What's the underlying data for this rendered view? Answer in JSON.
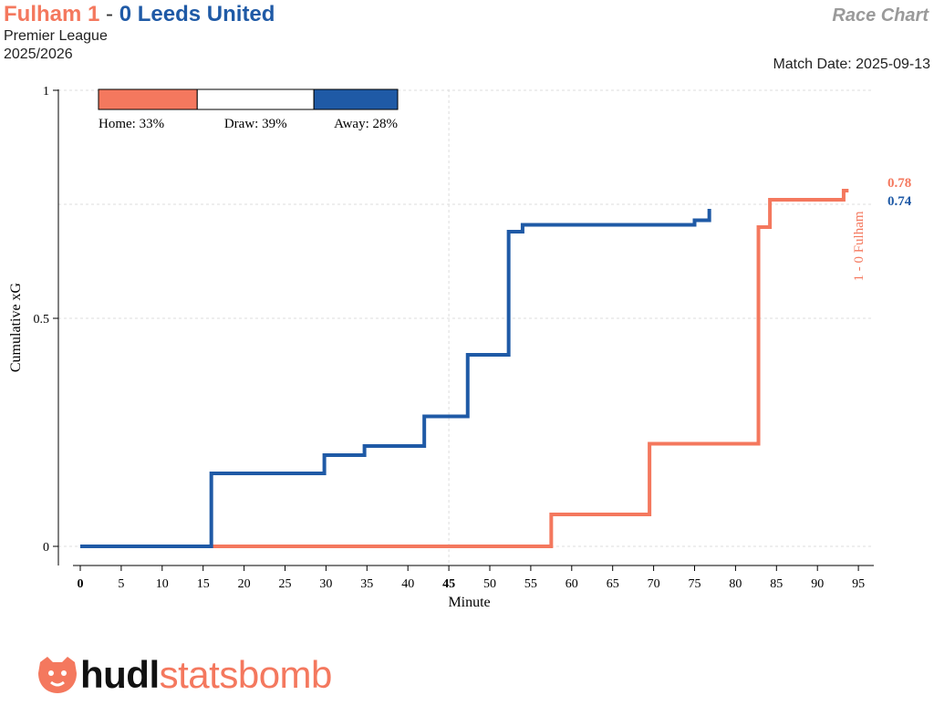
{
  "header": {
    "home_team": "Fulham",
    "home_score": "1",
    "separator": "-",
    "away_score": "0",
    "away_team": "Leeds United",
    "competition": "Premier League",
    "season": "2025/2026",
    "chart_name": "Race Chart",
    "match_date": "Match Date: 2025-09-13"
  },
  "colors": {
    "home": "#F4785E",
    "away": "#1F5AA6",
    "draw": "#ffffff",
    "grid": "#dddddd"
  },
  "probability_bar": {
    "home_label": "Home: 33%",
    "draw_label": "Draw: 39%",
    "away_label": "Away: 28%",
    "home": 0.33,
    "draw": 0.39,
    "away": 0.28
  },
  "logo": {
    "icon": "statsbomb-bulldog-icon",
    "brand_dark": "hudl",
    "brand_accent": "statsbomb"
  },
  "chart_data": {
    "type": "line",
    "xlabel": "Minute",
    "ylabel": "Cumulative xG",
    "xlim": [
      0,
      97
    ],
    "ylim": [
      0,
      1
    ],
    "x_ticks": [
      0,
      5,
      10,
      15,
      20,
      25,
      30,
      35,
      40,
      45,
      50,
      55,
      60,
      65,
      70,
      75,
      80,
      85,
      90,
      95
    ],
    "y_ticks": [
      0,
      0.5,
      1
    ],
    "y_tick_labels": [
      "0",
      "0.5",
      "1"
    ],
    "grid": true,
    "series": [
      {
        "name": "Fulham",
        "color": "#F4785E",
        "steps": [
          [
            0,
            0
          ],
          [
            57.5,
            0.07
          ],
          [
            69.5,
            0.225
          ],
          [
            82.8,
            0.7
          ],
          [
            84.2,
            0.76
          ],
          [
            93.2,
            0.78
          ],
          [
            93.8,
            0.78
          ]
        ],
        "end_label": "0.78"
      },
      {
        "name": "Leeds United",
        "color": "#1F5AA6",
        "steps": [
          [
            0,
            0
          ],
          [
            16,
            0.16
          ],
          [
            29.8,
            0.2
          ],
          [
            34.7,
            0.22
          ],
          [
            42,
            0.285
          ],
          [
            47.3,
            0.42
          ],
          [
            52.3,
            0.69
          ],
          [
            54,
            0.705
          ],
          [
            75,
            0.715
          ],
          [
            76.8,
            0.74
          ],
          [
            76.8,
            0.74
          ]
        ],
        "end_label": "0.74"
      }
    ],
    "annotations": [
      {
        "minute": 93.5,
        "xg": 0.78,
        "text": "1 - 0 Fulham",
        "color": "#F4785E"
      }
    ]
  }
}
